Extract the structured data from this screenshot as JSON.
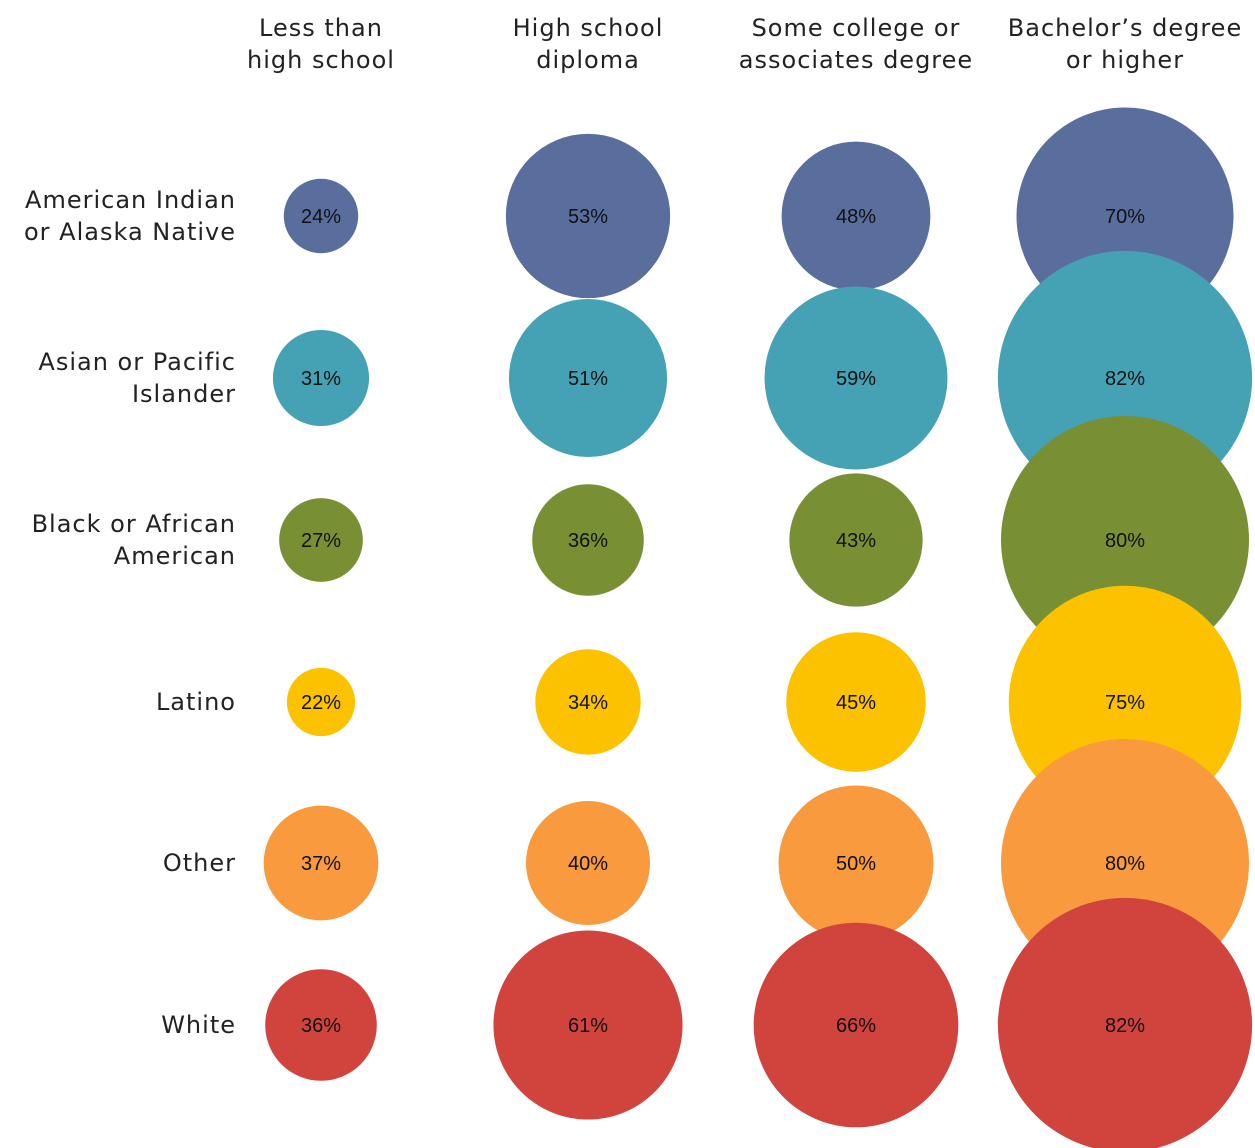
{
  "chart_data": {
    "type": "bubble",
    "columns": [
      [
        "Less than",
        "high school"
      ],
      [
        "High school",
        "diploma"
      ],
      [
        "Some college or",
        "associates degree"
      ],
      [
        "Bachelor’s degree",
        "or higher"
      ]
    ],
    "rows": [
      {
        "label": [
          "American Indian",
          "or Alaska Native"
        ],
        "color": "#5a6e9e",
        "values": [
          24,
          53,
          48,
          70
        ]
      },
      {
        "label": [
          "Asian or Pacific",
          "Islander"
        ],
        "color": "#44a2b4",
        "values": [
          31,
          51,
          59,
          82
        ]
      },
      {
        "label": [
          "Black or African",
          "American"
        ],
        "color": "#788f34",
        "values": [
          27,
          36,
          43,
          80
        ]
      },
      {
        "label": [
          "Latino"
        ],
        "color": "#fcc200",
        "values": [
          22,
          34,
          45,
          75
        ]
      },
      {
        "label": [
          "Other"
        ],
        "color": "#f89a3d",
        "values": [
          37,
          40,
          50,
          80
        ]
      },
      {
        "label": [
          "White"
        ],
        "color": "#d0443d",
        "values": [
          36,
          61,
          66,
          82
        ]
      }
    ],
    "value_suffix": "%"
  }
}
